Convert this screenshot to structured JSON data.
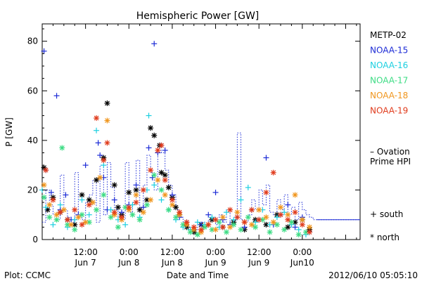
{
  "footer": {
    "plot_credit": "Plot: CCMC",
    "timestamp": "2012/06/10 05:05:10"
  },
  "chart_data": {
    "type": "scatter",
    "title": "Hemispheric Power [GW]",
    "xlabel": "Date and Time",
    "ylabel": "P [GW]",
    "ylim": [
      0,
      87
    ],
    "xlim": [
      0,
      88
    ],
    "x_unit": "hours since 2012/06/07 00:00 (UT)",
    "y_ticks": [
      0,
      20,
      40,
      60,
      80
    ],
    "x_ticks": [
      {
        "x": 12,
        "time": "12:00",
        "day": "Jun 7"
      },
      {
        "x": 24,
        "time": "0:00",
        "day": "Jun 8"
      },
      {
        "x": 36,
        "time": "12:00",
        "day": "Jun 8"
      },
      {
        "x": 48,
        "time": "0:00",
        "day": "Jun 9"
      },
      {
        "x": 60,
        "time": "12:00",
        "day": "Jun 9"
      },
      {
        "x": 72,
        "time": "0:00",
        "day": "Jun10"
      }
    ],
    "legend": {
      "placement": "right",
      "satellites": [
        {
          "name": "METP-02",
          "color": "#000000"
        },
        {
          "name": "NOAA-15",
          "color": "#1c2bd6"
        },
        {
          "name": "NOAA-16",
          "color": "#1ccfe0"
        },
        {
          "name": "NOAA-17",
          "color": "#3ddc84"
        },
        {
          "name": "NOAA-18",
          "color": "#f0961e"
        },
        {
          "name": "NOAA-19",
          "color": "#e03b1c"
        }
      ],
      "ovation_label_1": "– Ovation",
      "ovation_label_2": "Prime HPI",
      "ovation_color": "#1c2bd6",
      "marker_south_label": "+ south",
      "marker_north_label": "* north"
    },
    "ovation_hpi": {
      "x": [
        0,
        1,
        2,
        3,
        4,
        5,
        6,
        7,
        8,
        9,
        10,
        11,
        12,
        13,
        14,
        15,
        16,
        17,
        18,
        19,
        20,
        21,
        22,
        23,
        24,
        25,
        26,
        27,
        28,
        29,
        30,
        31,
        32,
        33,
        34,
        35,
        36,
        37,
        38,
        39,
        40,
        41,
        42,
        43,
        44,
        45,
        46,
        47,
        48,
        49,
        50,
        51,
        52,
        53,
        54,
        55,
        56,
        57,
        58,
        59,
        60,
        61,
        62,
        63,
        64,
        65,
        66,
        67,
        68,
        69,
        70,
        71,
        72,
        73,
        74,
        75,
        76,
        77,
        78,
        79,
        80,
        81,
        82,
        83,
        84,
        85,
        86,
        87,
        88
      ],
      "y": [
        7,
        20,
        14,
        10,
        8,
        26,
        12,
        9,
        7,
        27,
        10,
        8,
        15,
        18,
        24,
        7,
        30,
        10,
        31,
        21,
        12,
        9,
        8,
        31,
        11,
        15,
        32,
        13,
        22,
        34,
        27,
        20,
        36,
        35,
        28,
        22,
        18,
        12,
        9,
        7,
        5,
        5,
        4,
        6,
        7,
        5,
        8,
        9,
        6,
        10,
        7,
        12,
        6,
        8,
        43,
        8,
        7,
        10,
        16,
        12,
        20,
        14,
        22,
        11,
        10,
        16,
        12,
        18,
        10,
        13,
        8,
        15,
        12,
        10,
        9,
        8,
        8,
        8,
        8,
        8,
        8,
        8,
        8,
        8,
        8,
        8,
        8,
        8,
        8
      ]
    },
    "series": [
      {
        "name": "METP-02",
        "color": "#000000",
        "marker": "star",
        "x": [
          0.5,
          1.5,
          3,
          5,
          7,
          9,
          11,
          13,
          15,
          17,
          18,
          20,
          21,
          22,
          24,
          26,
          27,
          29,
          30,
          31,
          32.5,
          33,
          34,
          35,
          36,
          37,
          38,
          40,
          42,
          44,
          47,
          50,
          53,
          56,
          59,
          62,
          65,
          68,
          70,
          72,
          74
        ],
        "y": [
          29,
          12,
          17,
          11,
          8,
          6,
          18,
          16,
          24,
          33,
          55,
          22,
          13,
          10,
          19,
          20,
          12,
          16,
          45,
          42,
          38,
          27,
          26,
          21,
          17,
          13,
          10,
          5,
          3,
          6,
          8,
          5,
          7,
          4,
          8,
          6,
          10,
          5,
          7,
          8,
          4
        ]
      },
      {
        "name": "NOAA-15",
        "color": "#1c2bd6",
        "marker": "plus",
        "x": [
          0.5,
          1,
          2.5,
          4,
          5,
          6.5,
          8,
          10,
          12,
          14,
          15.5,
          16,
          17,
          18,
          20,
          22,
          24,
          26,
          28,
          29.5,
          30.5,
          31,
          32,
          33,
          34,
          36,
          38,
          40,
          42,
          44,
          46,
          48,
          50,
          52,
          54,
          56,
          58,
          60,
          62,
          64,
          66,
          68,
          70,
          72,
          74
        ],
        "y": [
          76,
          28,
          19,
          58,
          12,
          18,
          8,
          10,
          30,
          15,
          39,
          34,
          25,
          12,
          16,
          11,
          14,
          22,
          13,
          37,
          25,
          79,
          35,
          38,
          36,
          18,
          9,
          7,
          4,
          6,
          10,
          19,
          8,
          6,
          9,
          5,
          12,
          8,
          33,
          6,
          10,
          14,
          5,
          9,
          3
        ]
      },
      {
        "name": "NOAA-16",
        "color": "#1ccfe0",
        "marker": "plus",
        "x": [
          0,
          1,
          3,
          5,
          7,
          9,
          11,
          13,
          15,
          17,
          19,
          21,
          23,
          25,
          27,
          29,
          29.5,
          31,
          33,
          35,
          37,
          39,
          41,
          43,
          45,
          47,
          49,
          51,
          53,
          55,
          57,
          59,
          61,
          63,
          65,
          67,
          69,
          71,
          73
        ],
        "y": [
          20,
          13,
          6,
          14,
          5,
          8,
          16,
          10,
          44,
          30,
          12,
          8,
          6,
          14,
          9,
          20,
          50,
          22,
          16,
          12,
          8,
          5,
          4,
          7,
          6,
          9,
          5,
          11,
          8,
          16,
          21,
          7,
          12,
          6,
          9,
          11,
          6,
          4,
          2
        ]
      },
      {
        "name": "NOAA-17",
        "color": "#3ddc84",
        "marker": "star",
        "x": [
          0.5,
          2,
          4,
          5.5,
          7,
          9,
          11,
          13,
          15,
          17,
          19,
          21,
          23,
          25,
          27,
          29,
          31,
          33,
          35,
          37,
          39,
          41,
          43,
          45,
          47,
          49,
          51,
          53,
          55,
          57,
          59,
          61,
          63,
          65,
          67,
          69,
          71,
          73
        ],
        "y": [
          17,
          9,
          8,
          37,
          6,
          4,
          10,
          7,
          12,
          18,
          9,
          5,
          13,
          10,
          8,
          14,
          26,
          20,
          12,
          9,
          6,
          3,
          2,
          5,
          4,
          7,
          3,
          6,
          4,
          9,
          5,
          8,
          3,
          6,
          4,
          7,
          2,
          3
        ]
      },
      {
        "name": "NOAA-18",
        "color": "#f0961e",
        "marker": "star",
        "x": [
          0.5,
          2,
          4,
          6,
          8,
          10,
          12,
          14,
          16,
          18,
          20,
          22,
          24,
          26,
          28,
          30,
          32,
          34,
          36,
          38,
          40,
          42,
          44,
          46,
          48,
          50,
          52,
          54,
          56,
          58,
          60,
          62,
          64,
          66,
          68,
          70,
          72,
          74
        ],
        "y": [
          22,
          14,
          10,
          12,
          6,
          9,
          7,
          15,
          25,
          48,
          10,
          8,
          12,
          18,
          11,
          16,
          24,
          18,
          14,
          10,
          6,
          4,
          3,
          6,
          4,
          9,
          5,
          11,
          7,
          6,
          12,
          9,
          7,
          13,
          10,
          18,
          8,
          5
        ]
      },
      {
        "name": "NOAA-19",
        "color": "#e03b1c",
        "marker": "star",
        "x": [
          1,
          3,
          5,
          7,
          9,
          11,
          13,
          15,
          17,
          18,
          20,
          22,
          24,
          26,
          28,
          30,
          32,
          33,
          34,
          36,
          38,
          40,
          42,
          44,
          46,
          48,
          50,
          52,
          54,
          56,
          58,
          60,
          62,
          64,
          66,
          68,
          70,
          72,
          74
        ],
        "y": [
          28,
          16,
          11,
          8,
          12,
          6,
          14,
          49,
          32,
          39,
          11,
          9,
          13,
          15,
          20,
          28,
          36,
          38,
          24,
          16,
          11,
          7,
          5,
          4,
          6,
          8,
          5,
          12,
          9,
          7,
          12,
          8,
          19,
          27,
          10,
          8,
          11,
          6,
          3
        ]
      }
    ]
  }
}
